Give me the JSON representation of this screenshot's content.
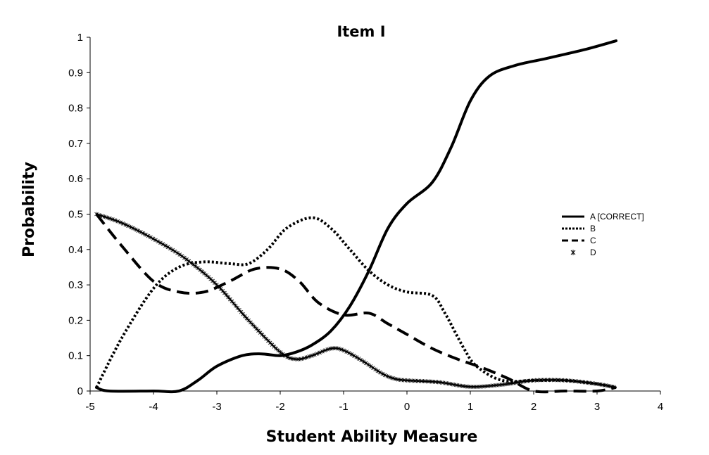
{
  "chart_data": {
    "type": "line",
    "title": "Item I",
    "xlabel": "Student Ability Measure",
    "ylabel": "Probability",
    "xlim": [
      -5,
      4
    ],
    "ylim": [
      0,
      1
    ],
    "xticks": [
      "-5",
      "-4",
      "-3",
      "-2",
      "-1",
      "0",
      "1",
      "2",
      "3",
      "4"
    ],
    "yticks": [
      "0",
      "0.1",
      "0.2",
      "0.3",
      "0.4",
      "0.5",
      "0.6",
      "0.7",
      "0.8",
      "0.9",
      "1"
    ],
    "grid": false,
    "legend_position": "right",
    "series": [
      {
        "name": "A [CORRECT]",
        "style": "solid",
        "x": [
          -4.9,
          -4.7,
          -4.0,
          -3.6,
          -3.3,
          -3.0,
          -2.6,
          -2.3,
          -2.0,
          -1.75,
          -1.5,
          -1.2,
          -0.9,
          -0.6,
          -0.3,
          0.0,
          0.4,
          0.7,
          1.0,
          1.3,
          1.7,
          2.2,
          2.8,
          3.3
        ],
        "y": [
          0.01,
          0.0,
          0.0,
          0.0,
          0.03,
          0.07,
          0.1,
          0.105,
          0.1,
          0.11,
          0.13,
          0.17,
          0.24,
          0.34,
          0.46,
          0.53,
          0.59,
          0.69,
          0.82,
          0.89,
          0.92,
          0.94,
          0.965,
          0.99
        ]
      },
      {
        "name": "B",
        "style": "dotted",
        "x": [
          -4.9,
          -4.5,
          -4.0,
          -3.6,
          -3.2,
          -2.8,
          -2.5,
          -2.2,
          -1.9,
          -1.5,
          -1.2,
          -0.9,
          -0.6,
          -0.3,
          0.0,
          0.4,
          0.6,
          0.9,
          1.1,
          1.5,
          2.0,
          2.5,
          3.0,
          3.3
        ],
        "y": [
          0.01,
          0.15,
          0.29,
          0.35,
          0.365,
          0.36,
          0.36,
          0.4,
          0.46,
          0.49,
          0.46,
          0.4,
          0.34,
          0.3,
          0.28,
          0.27,
          0.22,
          0.12,
          0.07,
          0.03,
          0.03,
          0.03,
          0.02,
          0.01
        ]
      },
      {
        "name": "C",
        "style": "dashed",
        "x": [
          -4.9,
          -4.5,
          -4.0,
          -3.6,
          -3.2,
          -2.8,
          -2.4,
          -2.0,
          -1.7,
          -1.4,
          -1.0,
          -0.6,
          -0.3,
          0.0,
          0.4,
          0.8,
          1.2,
          1.6,
          2.0,
          2.5,
          3.0,
          3.3
        ],
        "y": [
          0.5,
          0.41,
          0.31,
          0.28,
          0.28,
          0.31,
          0.345,
          0.345,
          0.31,
          0.25,
          0.215,
          0.22,
          0.19,
          0.16,
          0.12,
          0.09,
          0.065,
          0.035,
          0.0,
          0.0,
          0.0,
          0.01
        ]
      },
      {
        "name": "D",
        "style": "star-marker",
        "x": [
          -4.9,
          -4.5,
          -4.0,
          -3.5,
          -3.0,
          -2.5,
          -2.0,
          -1.75,
          -1.5,
          -1.2,
          -1.0,
          -0.7,
          -0.4,
          -0.2,
          0.0,
          0.5,
          1.0,
          1.5,
          2.0,
          2.5,
          3.0,
          3.3
        ],
        "y": [
          0.5,
          0.475,
          0.43,
          0.375,
          0.3,
          0.2,
          0.11,
          0.09,
          0.1,
          0.12,
          0.115,
          0.085,
          0.05,
          0.035,
          0.03,
          0.025,
          0.012,
          0.018,
          0.03,
          0.03,
          0.02,
          0.01
        ]
      }
    ]
  }
}
